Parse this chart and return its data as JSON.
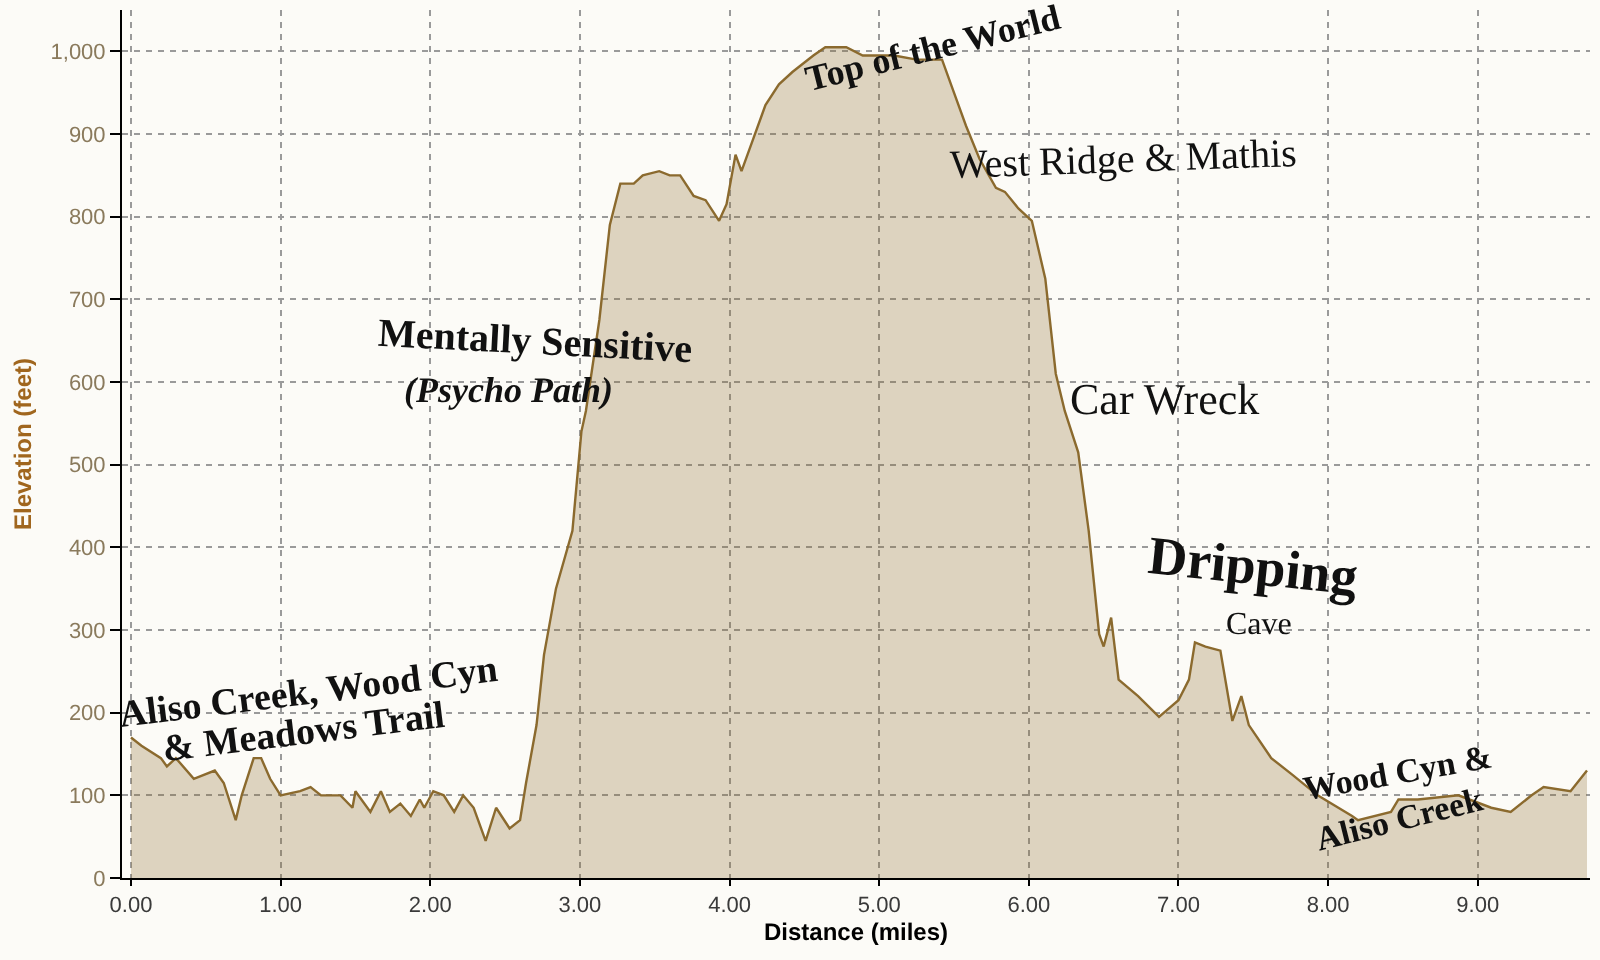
{
  "chart_data": {
    "type": "area",
    "xlabel": "Distance (miles)",
    "ylabel": "Elevation (feet)",
    "x": [
      0,
      0.07,
      0.2,
      0.24,
      0.3,
      0.42,
      0.56,
      0.62,
      0.7,
      0.74,
      0.82,
      0.87,
      0.93,
      1.0,
      1.13,
      1.2,
      1.27,
      1.4,
      1.48,
      1.5,
      1.6,
      1.67,
      1.73,
      1.8,
      1.87,
      1.93,
      1.96,
      2.02,
      2.09,
      2.16,
      2.22,
      2.29,
      2.37,
      2.44,
      2.53,
      2.6,
      2.64,
      2.71,
      2.76,
      2.84,
      2.95,
      3.01,
      3.04,
      3.13,
      3.2,
      3.27,
      3.36,
      3.42,
      3.53,
      3.6,
      3.67,
      3.76,
      3.84,
      3.93,
      3.98,
      4.04,
      4.08,
      4.16,
      4.24,
      4.33,
      4.42,
      4.56,
      4.64,
      4.78,
      4.89,
      4.94,
      5.1,
      5.25,
      5.42,
      5.49,
      5.58,
      5.67,
      5.78,
      5.84,
      5.93,
      6.02,
      6.11,
      6.18,
      6.24,
      6.33,
      6.4,
      6.47,
      6.5,
      6.55,
      6.6,
      6.73,
      6.87,
      7.0,
      7.07,
      7.11,
      7.18,
      7.28,
      7.36,
      7.42,
      7.47,
      7.62,
      7.76,
      7.93,
      8.16,
      8.2,
      8.42,
      8.47,
      8.6,
      8.87,
      9.09,
      9.22,
      9.36,
      9.44,
      9.62,
      9.73
    ],
    "series": [
      {
        "color": "#8b6a2e",
        "values": [
          170,
          160,
          145,
          135,
          145,
          120,
          130,
          115,
          70,
          100,
          145,
          145,
          120,
          100,
          105,
          110,
          100,
          100,
          85,
          105,
          80,
          105,
          80,
          90,
          75,
          95,
          85,
          105,
          100,
          80,
          100,
          85,
          45,
          85,
          60,
          70,
          115,
          185,
          270,
          350,
          420,
          540,
          565,
          675,
          790,
          840,
          840,
          850,
          855,
          850,
          850,
          825,
          820,
          795,
          815,
          875,
          855,
          895,
          935,
          960,
          975,
          995,
          1005,
          1005,
          995,
          995,
          995,
          990,
          990,
          955,
          910,
          870,
          835,
          830,
          810,
          795,
          725,
          610,
          565,
          515,
          420,
          295,
          280,
          315,
          240,
          220,
          195,
          215,
          240,
          285,
          280,
          275,
          190,
          220,
          185,
          145,
          125,
          100,
          75,
          70,
          80,
          95,
          95,
          100,
          85,
          80,
          100,
          110,
          105,
          130
        ]
      }
    ],
    "xlim": [
      -0.06,
      9.75
    ],
    "ylim": [
      0,
      1050
    ],
    "xticks": [
      {
        "value": 0,
        "label": "0.00"
      },
      {
        "value": 1,
        "label": "1.00"
      },
      {
        "value": 2,
        "label": "2.00"
      },
      {
        "value": 3,
        "label": "3.00"
      },
      {
        "value": 4,
        "label": "4.00"
      },
      {
        "value": 5,
        "label": "5.00"
      },
      {
        "value": 6,
        "label": "6.00"
      },
      {
        "value": 7,
        "label": "7.00"
      },
      {
        "value": 8,
        "label": "8.00"
      },
      {
        "value": 9,
        "label": "9.00"
      }
    ],
    "yticks": [
      0,
      100,
      200,
      300,
      400,
      500,
      600,
      700,
      800,
      900,
      {
        "value": 1000,
        "label": "1,000"
      }
    ],
    "grid": true,
    "annotations": [
      "Aliso Creek, Wood Cyn",
      "& Meadows Trail",
      "Mentally Sensitive",
      "(Psycho Path)",
      "Top of the World",
      "West Ridge & Mathis",
      "Car Wreck",
      "Dripping",
      "Cave",
      "Wood Cyn &",
      "Aliso Creek"
    ]
  }
}
